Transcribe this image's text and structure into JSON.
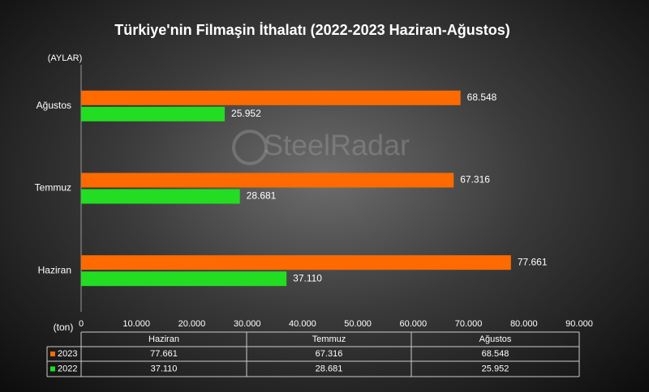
{
  "chart_data": {
    "type": "bar",
    "orientation": "horizontal",
    "title": "Türkiye'nin Filmaşin İthalatı (2022-2023 Haziran-Ağustos)",
    "y_label": "(AYLAR)",
    "x_label": "(ton)",
    "watermark": "SteelRadar",
    "categories": [
      "Haziran",
      "Temmuz",
      "Ağustos"
    ],
    "series": [
      {
        "name": "2023",
        "color": "#ff6a00",
        "values": [
          77661,
          67316,
          68548
        ],
        "value_labels": [
          "77.661",
          "67.316",
          "68.548"
        ]
      },
      {
        "name": "2022",
        "color": "#22dd22",
        "values": [
          37110,
          28681,
          25952
        ],
        "value_labels": [
          "37.110",
          "28.681",
          "25.952"
        ]
      }
    ],
    "xlim": [
      0,
      90000
    ],
    "xticks": [
      0,
      {
        "value": 10000,
        "label": "10.000"
      },
      {
        "value": 20000,
        "label": "20.000"
      },
      {
        "value": 30000,
        "label": "30.000"
      },
      {
        "value": 40000,
        "label": "40.000"
      },
      {
        "value": 50000,
        "label": "50.000"
      },
      {
        "value": 60000,
        "label": "60.000"
      },
      {
        "value": 70000,
        "label": "70.000"
      },
      {
        "value": 80000,
        "label": "80.000"
      },
      {
        "value": 90000,
        "label": "90.000"
      }
    ],
    "data_table": true
  }
}
